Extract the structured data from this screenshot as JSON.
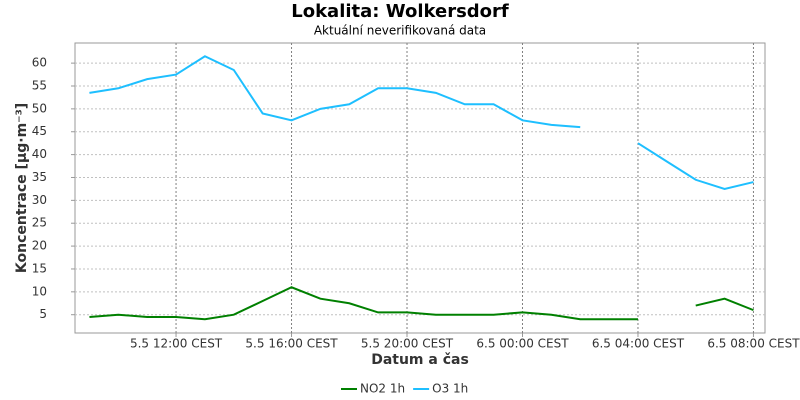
{
  "chart_data": {
    "type": "line",
    "title": "Lokalita: Wolkersdorf",
    "subtitle": "Aktuální neverifikovaná data",
    "xlabel": "Datum a čas",
    "ylabel": "Koncentrace [µg·m⁻³]",
    "x": [
      9,
      10,
      11,
      12,
      13,
      14,
      15,
      16,
      17,
      18,
      19,
      20,
      21,
      22,
      23,
      24,
      25,
      26,
      27,
      28,
      29,
      30,
      31,
      32
    ],
    "series": [
      {
        "name": "NO2 1h",
        "color": "#008000",
        "values": [
          4.5,
          5,
          4.5,
          4.5,
          4,
          5,
          8,
          11,
          8.5,
          7.5,
          5.5,
          5.5,
          5,
          5,
          5,
          5.5,
          5,
          4,
          4,
          4,
          null,
          7,
          8.5,
          6
        ]
      },
      {
        "name": "O3 1h",
        "color": "#1ebfff",
        "values": [
          53.5,
          54.5,
          56.5,
          57.5,
          61.5,
          58.5,
          49,
          47.5,
          50,
          51,
          54.5,
          54.5,
          53.5,
          51,
          51,
          47.5,
          46.5,
          46,
          null,
          42.5,
          38.5,
          34.5,
          32.5,
          34
        ]
      }
    ],
    "xlim": [
      8.5,
      32.4
    ],
    "xticks": [
      {
        "value": 12,
        "label": "5.5 12:00 CEST"
      },
      {
        "value": 16,
        "label": "5.5 16:00 CEST"
      },
      {
        "value": 20,
        "label": "5.5 20:00 CEST"
      },
      {
        "value": 24,
        "label": "6.5 00:00 CEST"
      },
      {
        "value": 28,
        "label": "6.5 04:00 CEST"
      },
      {
        "value": 32,
        "label": "6.5 08:00 CEST"
      }
    ],
    "ylim": [
      1,
      64.4
    ],
    "yticks": [
      5,
      10,
      15,
      20,
      25,
      30,
      35,
      40,
      45,
      50,
      55,
      60
    ],
    "grid": true,
    "legend": "bottom"
  }
}
